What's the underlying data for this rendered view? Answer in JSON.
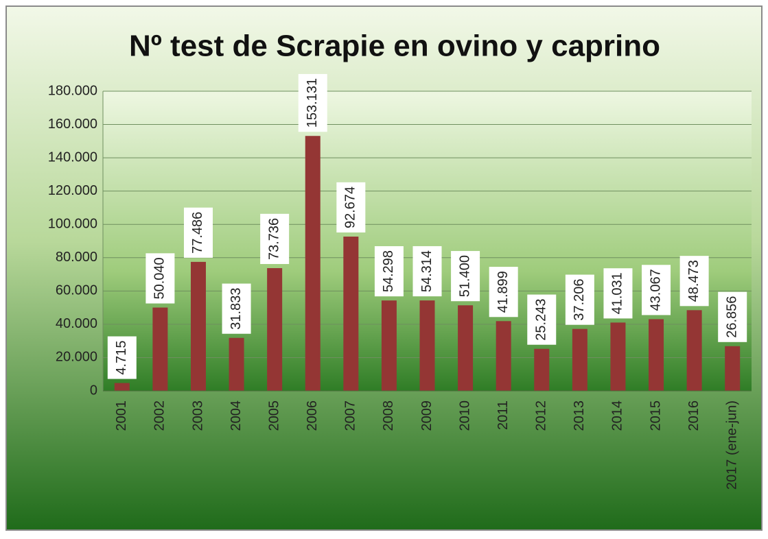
{
  "chart_data": {
    "type": "bar",
    "title": "Nº test de Scrapie en ovino y caprino",
    "categories": [
      "2001",
      "2002",
      "2003",
      "2004",
      "2005",
      "2006",
      "2007",
      "2008",
      "2009",
      "2010",
      "2011",
      "2012",
      "2013",
      "2014",
      "2015",
      "2016",
      "2017 (ene-jun)"
    ],
    "values": [
      4715,
      50040,
      77486,
      31833,
      73736,
      153131,
      92674,
      54298,
      54314,
      51400,
      41899,
      25243,
      37206,
      41031,
      43067,
      48473,
      26856
    ],
    "value_labels": [
      "4.715",
      "50.040",
      "77.486",
      "31.833",
      "73.736",
      "153.131",
      "92.674",
      "54.298",
      "54.314",
      "51.400",
      "41.899",
      "25.243",
      "37.206",
      "41.031",
      "43.067",
      "48.473",
      "26.856"
    ],
    "color": "#943634",
    "ylim": [
      0,
      180000
    ],
    "yticks": [
      0,
      {
        "value": 20000,
        "label": "20.000"
      },
      {
        "value": 40000,
        "label": "40.000"
      },
      {
        "value": 60000,
        "label": "60.000"
      },
      {
        "value": 80000,
        "label": "80.000"
      },
      {
        "value": 100000,
        "label": "100.000"
      },
      {
        "value": 120000,
        "label": "120.000"
      },
      {
        "value": 140000,
        "label": "140.000"
      },
      {
        "value": 160000,
        "label": "160.000"
      },
      {
        "value": 180000,
        "label": "180.000"
      }
    ],
    "grid": true
  }
}
